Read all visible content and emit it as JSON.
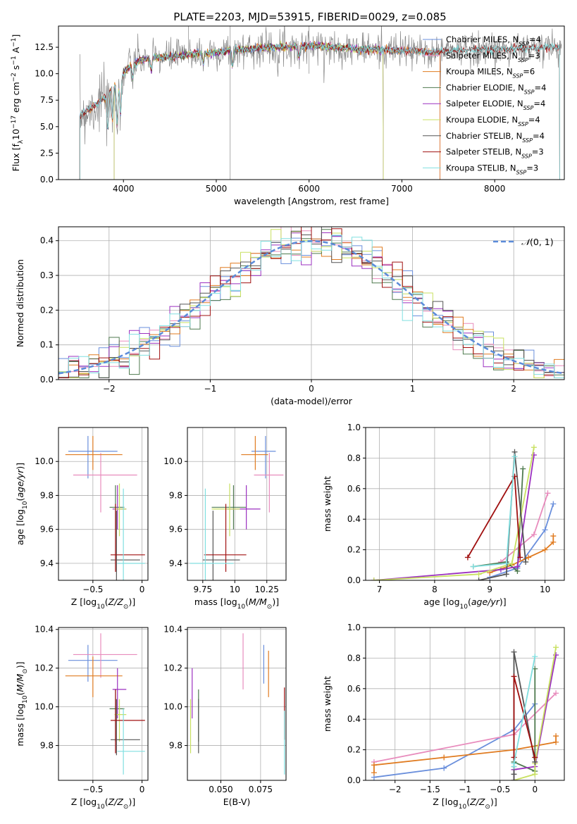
{
  "figure_title": "PLATE=2203, MJD=53915, FIBERID=0029, z=0.085",
  "colors": {
    "Chabrier MILES": "#6a8fdc",
    "Salpeter MILES": "#e88cbd",
    "Kroupa MILES": "#e07b20",
    "Chabrier ELODIE": "#4f7a4f",
    "Salpeter ELODIE": "#9b30c0",
    "Kroupa ELODIE": "#c8e060",
    "Chabrier STELIB": "#555555",
    "Salpeter STELIB": "#a01010",
    "Kroupa STELIB": "#80dfe0",
    "data": "#888888",
    "gaussian": "#5b8bd9"
  },
  "chart_data": [
    {
      "id": "spectrum",
      "type": "line",
      "title": "PLATE=2203, MJD=53915, FIBERID=0029, z=0.085",
      "xlabel": "wavelength [Angstrom, rest frame]",
      "ylabel": "Flux [f_λ 10^-17 erg cm^-2 s^-1 A^-1]",
      "xlim": [
        3300,
        8750
      ],
      "ylim": [
        0,
        14.5
      ],
      "xticks": [
        4000,
        5000,
        6000,
        7000,
        8000
      ],
      "yticks": [
        0.0,
        2.5,
        5.0,
        7.5,
        10.0,
        12.5
      ],
      "continuum_x": [
        3530,
        3600,
        3700,
        3800,
        3900,
        4000,
        4100,
        4300,
        4500,
        4800,
        5000,
        5300,
        5600,
        6000,
        6300,
        6600,
        7000,
        7300,
        7600,
        8000,
        8400,
        8700
      ],
      "continuum_y": [
        6.0,
        6.5,
        7.0,
        7.8,
        8.8,
        10.0,
        11.0,
        11.5,
        11.6,
        11.9,
        12.0,
        12.3,
        12.5,
        12.6,
        12.5,
        12.3,
        12.2,
        12.0,
        12.2,
        12.3,
        12.4,
        12.5
      ],
      "legend": [
        {
          "label": "Chabrier MILES, N_SSP=4",
          "text": "Chabrier MILES, N",
          "n": "=4"
        },
        {
          "label": "Salpeter MILES, N_SSP=3",
          "text": "Salpeter MILES, N",
          "n": "=3"
        },
        {
          "label": "Kroupa MILES, N_SSP=6",
          "text": "Kroupa MILES, N",
          "n": "=6"
        },
        {
          "label": "Chabrier ELODIE, N_SSP=4",
          "text": "Chabrier ELODIE, N",
          "n": "=4"
        },
        {
          "label": "Salpeter ELODIE, N_SSP=4",
          "text": "Salpeter ELODIE, N",
          "n": "=4"
        },
        {
          "label": "Kroupa ELODIE, N_SSP=4",
          "text": "Kroupa ELODIE, N",
          "n": "=4"
        },
        {
          "label": "Chabrier STELIB, N_SSP=4",
          "text": "Chabrier STELIB, N",
          "n": "=4"
        },
        {
          "label": "Salpeter STELIB, N_SSP=3",
          "text": "Salpeter STELIB, N",
          "n": "=3"
        },
        {
          "label": "Kroupa STELIB, N_SSP=3",
          "text": "Kroupa STELIB, N",
          "n": "=3"
        }
      ],
      "legend_placement": "right"
    },
    {
      "id": "residuals",
      "type": "histogram",
      "xlabel": "(data-model)/error",
      "ylabel": "Normed distribution",
      "xlim": [
        -2.5,
        2.5
      ],
      "ylim": [
        0,
        0.44
      ],
      "xticks": [
        -2,
        -1,
        0,
        1,
        2
      ],
      "yticks": [
        0.0,
        0.1,
        0.2,
        0.3,
        0.4
      ],
      "bin_width": 0.1,
      "gaussian_label": "N(0,1)",
      "legend_placement": "top-right",
      "grid": true
    },
    {
      "id": "age-vs-Z",
      "type": "scatter",
      "xlabel": "Z [log10(Z/Z⊙)]",
      "ylabel": "age  [log10(age/yr)]",
      "xlim": [
        -0.85,
        0.06
      ],
      "ylim": [
        9.3,
        10.2
      ],
      "xticks": [
        -0.5,
        0.0
      ],
      "yticks": [
        9.4,
        9.6,
        9.8,
        10.0
      ]
    },
    {
      "id": "age-vs-mass",
      "type": "scatter",
      "xlabel": "mass [log10(M/M⊙)]",
      "xlim": [
        9.63,
        10.4
      ],
      "ylim": [
        9.3,
        10.2
      ],
      "xticks": [
        9.75,
        10.0,
        10.25
      ],
      "yticks": [
        9.4,
        9.6,
        9.8,
        10.0
      ]
    },
    {
      "id": "weight-vs-age",
      "type": "line",
      "xlabel": "age  [log10(age/yr)]",
      "ylabel": "mass weight",
      "xlim": [
        6.75,
        10.35
      ],
      "ylim": [
        0,
        1
      ],
      "xticks": [
        7,
        8,
        9,
        10
      ],
      "yticks": [
        0.0,
        0.2,
        0.4,
        0.6,
        0.8,
        1.0
      ]
    },
    {
      "id": "mass-vs-Z",
      "type": "scatter",
      "xlabel": "Z [log10(Z/Z⊙)]",
      "ylabel": "mass [log10(M/M⊙)]",
      "xlim": [
        -0.85,
        0.06
      ],
      "ylim": [
        9.62,
        10.41
      ],
      "xticks": [
        -0.5,
        0.0
      ],
      "yticks": [
        9.8,
        10.0,
        10.2,
        10.4
      ]
    },
    {
      "id": "mass-vs-ebv",
      "type": "scatter",
      "xlabel": "E(B-V)",
      "xlim": [
        0.029,
        0.091
      ],
      "ylim": [
        9.62,
        10.41
      ],
      "xticks": [
        0.05,
        0.075
      ],
      "xticklabels": [
        "0.050",
        "0.075"
      ],
      "yticks": [
        9.8,
        10.0,
        10.2,
        10.4
      ]
    },
    {
      "id": "weight-vs-Z",
      "type": "line",
      "xlabel": "Z [log10(Z/Z⊙)]",
      "ylabel": "mass weight",
      "xlim": [
        -2.42,
        0.42
      ],
      "ylim": [
        0,
        1
      ],
      "xticks": [
        -2.0,
        -1.5,
        -1.0,
        -0.5,
        0.0
      ],
      "yticks": [
        0.0,
        0.2,
        0.4,
        0.6,
        0.8,
        1.0
      ]
    }
  ],
  "fits": [
    {
      "model": "Chabrier MILES",
      "Z": -0.55,
      "Z_err": [
        -0.75,
        -0.25
      ],
      "age": 10.06,
      "age_err": [
        9.9,
        10.15
      ],
      "mass": 10.24,
      "mass_err": [
        10.13,
        10.32
      ],
      "ebv": 0.077,
      "ebv_err": [
        10.12,
        10.32
      ],
      "ssp_age": [
        9.0,
        9.5,
        10.0,
        10.15
      ],
      "ssp_Z": [
        -2.3,
        -1.3,
        -0.3,
        0.0
      ],
      "ssp_w": [
        0.02,
        0.08,
        0.33,
        0.5
      ]
    },
    {
      "model": "Salpeter MILES",
      "Z": -0.42,
      "Z_err": [
        -0.7,
        -0.05
      ],
      "age": 9.92,
      "age_err": [
        9.7,
        10.05
      ],
      "mass": 10.27,
      "mass_err": [
        10.15,
        10.38
      ],
      "ebv": 0.064,
      "ebv_err": [
        10.09,
        10.38
      ],
      "ssp_age": [
        9.2,
        9.8,
        10.05
      ],
      "ssp_Z": [
        -2.3,
        -0.3,
        0.3
      ],
      "ssp_w": [
        0.12,
        0.3,
        0.57
      ]
    },
    {
      "model": "Kroupa MILES",
      "Z": -0.5,
      "Z_err": [
        -0.78,
        -0.2
      ],
      "age": 10.04,
      "age_err": [
        9.95,
        10.15
      ],
      "mass": 10.16,
      "mass_err": [
        10.05,
        10.26
      ],
      "ebv": 0.08,
      "ebv_err": [
        10.05,
        10.29
      ],
      "ssp_age": [
        9.0,
        9.4,
        9.7,
        10.0,
        10.15,
        10.15
      ],
      "ssp_Z": [
        -2.3,
        -2.3,
        -1.3,
        -0.3,
        0.3,
        0.3
      ],
      "ssp_w": [
        0.05,
        0.1,
        0.15,
        0.2,
        0.25,
        0.29
      ]
    },
    {
      "model": "Chabrier ELODIE",
      "Z": -0.27,
      "Z_err": [
        -0.33,
        -0.18
      ],
      "age": 9.73,
      "age_err": [
        9.6,
        9.86
      ],
      "mass": 9.99,
      "mass_err": [
        9.82,
        10.09
      ],
      "ebv": 0.036,
      "ebv_err": [
        9.82,
        10.09
      ],
      "ssp_age": [
        8.7,
        9.3,
        9.5,
        9.6
      ],
      "ssp_Z": [
        -0.3,
        -0.3,
        0.0,
        0.0
      ],
      "ssp_w": [
        0.09,
        0.12,
        0.06,
        0.73
      ]
    },
    {
      "model": "Salpeter ELODIE",
      "Z": -0.25,
      "Z_err": [
        -0.3,
        -0.16
      ],
      "age": 9.72,
      "age_err": [
        9.6,
        9.86
      ],
      "mass": 10.09,
      "mass_err": [
        9.94,
        10.2
      ],
      "ebv": 0.032,
      "ebv_err": [
        9.94,
        10.2
      ],
      "ssp_age": [
        6.9,
        9.2,
        9.5,
        9.8
      ],
      "ssp_Z": [
        -0.3,
        -0.3,
        0.0,
        0.3
      ],
      "ssp_w": [
        0.0,
        0.07,
        0.09,
        0.82
      ]
    },
    {
      "model": "Kroupa ELODIE",
      "Z": -0.23,
      "Z_err": [
        -0.28,
        -0.16
      ],
      "age": 9.72,
      "age_err": [
        9.56,
        9.87
      ],
      "mass": 9.96,
      "mass_err": [
        9.82,
        10.04
      ],
      "ebv": 0.031,
      "ebv_err": [
        9.76,
        10.04
      ],
      "ssp_age": [
        6.9,
        8.8,
        9.4,
        9.8
      ],
      "ssp_Z": [
        -0.3,
        0.0,
        0.0,
        0.3
      ],
      "ssp_w": [
        0.0,
        0.04,
        0.11,
        0.87
      ]
    },
    {
      "model": "Chabrier STELIB",
      "Z": -0.26,
      "Z_err": [
        -0.32,
        -0.02
      ],
      "age": 9.42,
      "age_err": [
        9.3,
        9.71
      ],
      "mass": 9.83,
      "mass_err": [
        9.75,
        10.04
      ],
      "ebv": 0.036,
      "ebv_err": [
        9.76,
        10.04
      ],
      "ssp_age": [
        8.8,
        9.3,
        9.45,
        9.65
      ],
      "ssp_Z": [
        -0.3,
        -0.3,
        -0.3,
        0.0
      ],
      "ssp_w": [
        0.0,
        0.04,
        0.84,
        0.12
      ]
    },
    {
      "model": "Salpeter STELIB",
      "Z": -0.27,
      "Z_err": [
        -0.32,
        0.03
      ],
      "age": 9.45,
      "age_err": [
        9.35,
        9.75
      ],
      "mass": 9.93,
      "mass_err": [
        9.76,
        10.09
      ],
      "ebv": 0.09,
      "ebv_err": [
        9.83,
        10.1
      ],
      "ssp_age": [
        8.6,
        9.45,
        9.55
      ],
      "ssp_Z": [
        -0.3,
        -0.3,
        0.0
      ],
      "ssp_w": [
        0.15,
        0.68,
        0.15
      ]
    },
    {
      "model": "Kroupa STELIB",
      "Z": -0.19,
      "Z_err": [
        -0.25,
        0.03
      ],
      "age": 9.4,
      "age_err": [
        9.3,
        9.84
      ],
      "mass": 9.77,
      "mass_err": [
        9.65,
        9.99
      ],
      "ebv": 0.09,
      "ebv_err": [
        9.65,
        9.98
      ],
      "ssp_age": [
        8.7,
        9.3,
        9.45
      ],
      "ssp_Z": [
        -0.3,
        -0.3,
        0.0
      ],
      "ssp_w": [
        0.09,
        0.11,
        0.81
      ]
    }
  ]
}
